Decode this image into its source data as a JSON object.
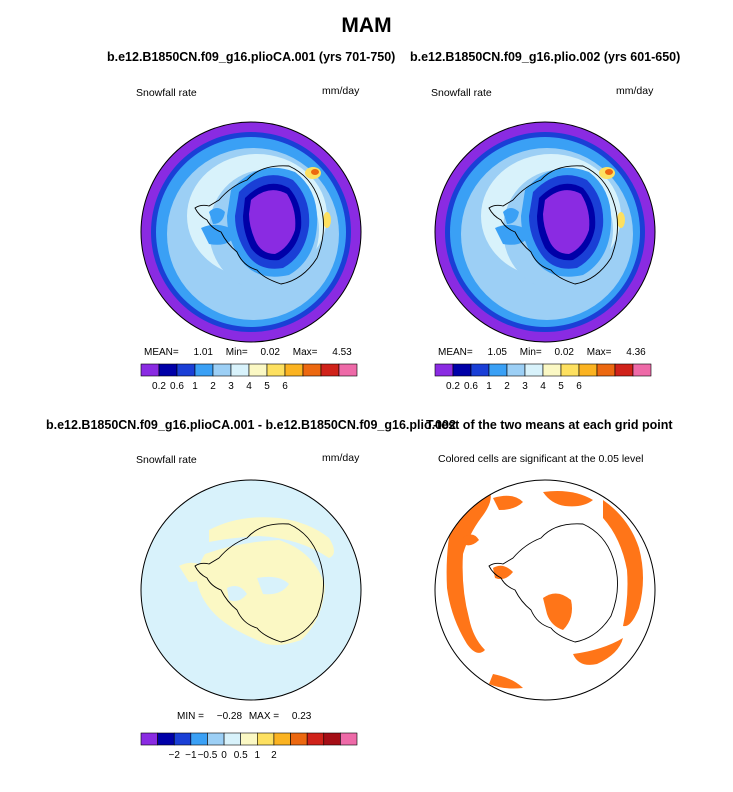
{
  "main_title": "MAM",
  "panels": [
    {
      "title": "b.e12.B1850CN.f09_g16.plioCA.001 (yrs 701-750)",
      "left_label": "Snowfall rate",
      "right_label": "mm/day",
      "stats": {
        "mean_label": "MEAN=",
        "mean": "1.01",
        "min_label": "Min=",
        "min": "0.02",
        "max_label": "Max=",
        "max": "4.53"
      }
    },
    {
      "title": "b.e12.B1850CN.f09_g16.plio.002 (yrs 601-650)",
      "left_label": "Snowfall rate",
      "right_label": "mm/day",
      "stats": {
        "mean_label": "MEAN=",
        "mean": "1.05",
        "min_label": "Min=",
        "min": "0.02",
        "max_label": "Max=",
        "max": "4.36"
      }
    },
    {
      "title": "b.e12.B1850CN.f09_g16.plioCA.001 - b.e12.B1850CN.f09_g16.plio.002",
      "left_label": "Snowfall rate",
      "right_label": "mm/day",
      "stats": {
        "min_label": "MIN =",
        "min": "−0.28",
        "max_label": "MAX =",
        "max": "0.23"
      }
    },
    {
      "title": "T-test of the two means at each grid point",
      "left_label": "Colored cells are significant at the 0.05 level"
    }
  ],
  "colorbar_abs": {
    "colors": [
      "#8a2be2",
      "#0000a8",
      "#1a3fd6",
      "#3aa0f5",
      "#9ccff5",
      "#d8f2fb",
      "#fbf8c4",
      "#fde060",
      "#fbb321",
      "#ec6810",
      "#d0221a",
      "#ee6aa8"
    ],
    "ticks": [
      "0.2",
      "0.6",
      "1",
      "2",
      "3",
      "4",
      "5",
      "6"
    ]
  },
  "colorbar_diff": {
    "colors": [
      "#8a2be2",
      "#0000a8",
      "#1a3fd6",
      "#3aa0f5",
      "#9ccff5",
      "#d8f2fb",
      "#fbf8c4",
      "#fde060",
      "#fbb321",
      "#ec6810",
      "#d0221a",
      "#a50e16",
      "#ee6aa8"
    ],
    "ticks": [
      "−2",
      "−1",
      "−0.5",
      "0",
      "0.5",
      "1",
      "2"
    ]
  },
  "chart_data": [
    {
      "type": "heatmap",
      "title": "b.e12.B1850CN.f09_g16.plioCA.001 (yrs 701-750)",
      "variable": "Snowfall rate",
      "units": "mm/day",
      "projection": "south polar stereographic",
      "mean": 1.01,
      "min": 0.02,
      "max": 4.53,
      "levels": [
        0.2,
        0.4,
        0.6,
        0.8,
        1,
        1.5,
        2,
        2.5,
        3,
        3.5,
        4,
        5,
        6
      ]
    },
    {
      "type": "heatmap",
      "title": "b.e12.B1850CN.f09_g16.plio.002 (yrs 601-650)",
      "variable": "Snowfall rate",
      "units": "mm/day",
      "projection": "south polar stereographic",
      "mean": 1.05,
      "min": 0.02,
      "max": 4.36,
      "levels": [
        0.2,
        0.4,
        0.6,
        0.8,
        1,
        1.5,
        2,
        2.5,
        3,
        3.5,
        4,
        5,
        6
      ]
    },
    {
      "type": "heatmap",
      "title": "b.e12.B1850CN.f09_g16.plioCA.001 - b.e12.B1850CN.f09_g16.plio.002",
      "variable": "Snowfall rate",
      "units": "mm/day",
      "projection": "south polar stereographic",
      "min": -0.28,
      "max": 0.23,
      "levels": [
        -2,
        -1.5,
        -1,
        -0.75,
        -0.5,
        -0.25,
        0,
        0.25,
        0.5,
        0.75,
        1,
        1.5,
        2
      ]
    },
    {
      "type": "heatmap",
      "title": "T-test of the two means at each grid point",
      "note": "Colored cells are significant at the 0.05 level",
      "significance_level": 0.05
    }
  ]
}
